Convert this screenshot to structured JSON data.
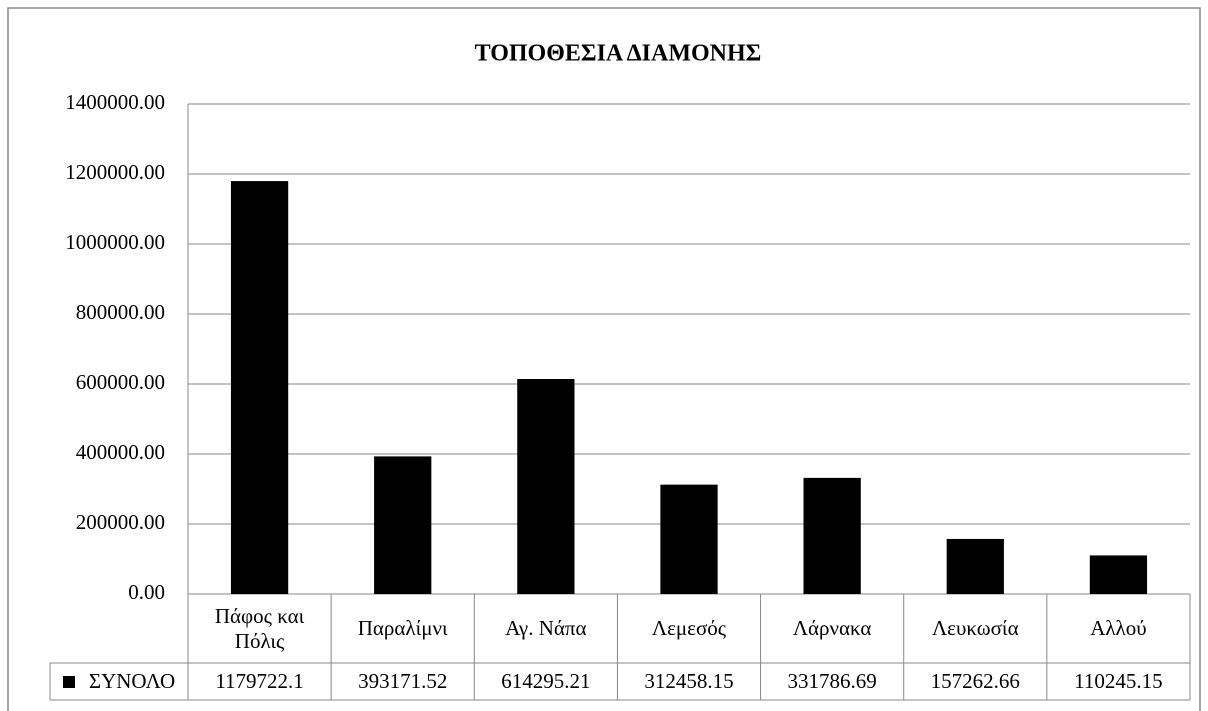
{
  "chart_data": {
    "type": "bar",
    "title": "ΤΟΠΟΘΕΣΙΑ ΔΙΑΜΟΝΗΣ",
    "categories": [
      "Πάφος και Πόλις",
      "Παραλίμνι",
      "Αγ. Νάπα",
      "Λεμεσός",
      "Λάρνακα",
      "Λευκωσία",
      "Αλλού"
    ],
    "series": [
      {
        "name": "ΣΥΝΟΛΟ",
        "color": "#000000",
        "values": [
          1179722.1,
          393171.52,
          614295.21,
          312458.15,
          331786.69,
          157262.66,
          110245.15
        ]
      }
    ],
    "ylim": [
      0,
      1400000
    ],
    "yticks": [
      {
        "value": 0,
        "label": "0.00"
      },
      {
        "value": 200000,
        "label": "200000.00"
      },
      {
        "value": 400000,
        "label": "400000.00"
      },
      {
        "value": 600000,
        "label": "600000.00"
      },
      {
        "value": 800000,
        "label": "800000.00"
      },
      {
        "value": 1000000,
        "label": "1000000.00"
      },
      {
        "value": 1200000,
        "label": "1200000.00"
      },
      {
        "value": 1400000,
        "label": "1400000.00"
      }
    ],
    "grid": true
  }
}
